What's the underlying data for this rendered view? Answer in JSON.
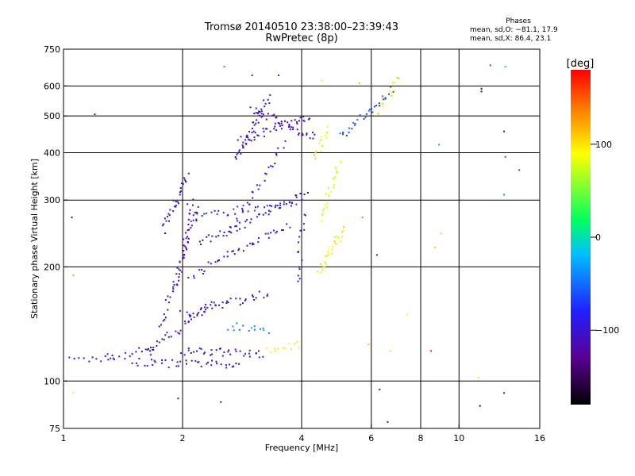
{
  "header": {
    "title": "Tromsø 20140510 23:38:00–23:39:43",
    "subtitle": "RwPretec (8p)",
    "phases": {
      "title": "Phases",
      "line_o": "mean, sd,O: −81.1, 17.9",
      "line_x": "mean, sd,X:  86.4, 23.1"
    }
  },
  "colorbar": {
    "unit": "[deg]",
    "ticks": [
      {
        "value": 100,
        "label": "100"
      },
      {
        "value": 0,
        "label": "0"
      },
      {
        "value": -100,
        "label": "−100"
      }
    ],
    "range": [
      -180,
      180
    ],
    "colors": [
      "#000000",
      "#5a0090",
      "#2020ff",
      "#00c0ff",
      "#00ff60",
      "#ffff00",
      "#ff8000",
      "#ff0000"
    ]
  },
  "chart_data": {
    "type": "scatter",
    "title": "Tromsø 20140510 23:38:00–23:39:43",
    "subtitle": "RwPretec (8p)",
    "xlabel": "Frequency [MHz]",
    "ylabel": "Stationary phase Virtual Height [km]",
    "x_scale": "log",
    "y_scale": "log",
    "xlim": [
      1,
      16
    ],
    "ylim": [
      75,
      750
    ],
    "x_ticks": [
      {
        "value": 1,
        "label": "1"
      },
      {
        "value": 2,
        "label": "2"
      },
      {
        "value": 4,
        "label": "4"
      },
      {
        "value": 6,
        "label": "6"
      },
      {
        "value": 8,
        "label": "8"
      },
      {
        "value": 10,
        "label": "10"
      },
      {
        "value": 16,
        "label": "16"
      }
    ],
    "y_ticks": [
      {
        "value": 75,
        "label": "75"
      },
      {
        "value": 100,
        "label": "100"
      },
      {
        "value": 200,
        "label": "200"
      },
      {
        "value": 300,
        "label": "300"
      },
      {
        "value": 400,
        "label": "400"
      },
      {
        "value": 500,
        "label": "500"
      },
      {
        "value": 600,
        "label": "600"
      },
      {
        "value": 750,
        "label": "750"
      }
    ],
    "x_gridlines": [
      2,
      4,
      6,
      8,
      10
    ],
    "y_gridlines": [
      100,
      200,
      300,
      400,
      500,
      600
    ],
    "grid": true,
    "color_scale": "phase [deg], -180 to 180",
    "traces": [
      {
        "x0": 1.05,
        "x1": 1.35,
        "h0": 113,
        "h1": 116,
        "n": 12,
        "phase": -100
      },
      {
        "x0": 1.3,
        "x1": 1.7,
        "h0": 115,
        "h1": 122,
        "n": 14,
        "phase": -105
      },
      {
        "x0": 1.5,
        "x1": 2.8,
        "h0": 112,
        "h1": 110,
        "n": 40,
        "phase": -100
      },
      {
        "x0": 1.6,
        "x1": 2.4,
        "h0": 118,
        "h1": 160,
        "n": 35,
        "phase": -105
      },
      {
        "x0": 1.75,
        "x1": 2.2,
        "h0": 140,
        "h1": 290,
        "n": 40,
        "phase": -110
      },
      {
        "x0": 1.8,
        "x1": 2.05,
        "h0": 250,
        "h1": 350,
        "n": 30,
        "phase": -100
      },
      {
        "x0": 1.95,
        "x1": 2.1,
        "h0": 180,
        "h1": 300,
        "n": 25,
        "phase": -115
      },
      {
        "x0": 2.0,
        "x1": 3.2,
        "h0": 120,
        "h1": 118,
        "n": 35,
        "phase": -95
      },
      {
        "x0": 2.0,
        "x1": 3.3,
        "h0": 150,
        "h1": 170,
        "n": 35,
        "phase": -100
      },
      {
        "x0": 2.1,
        "x1": 3.7,
        "h0": 190,
        "h1": 260,
        "n": 40,
        "phase": -95
      },
      {
        "x0": 2.2,
        "x1": 4.1,
        "h0": 230,
        "h1": 310,
        "n": 45,
        "phase": -100
      },
      {
        "x0": 2.1,
        "x1": 4.0,
        "h0": 270,
        "h1": 300,
        "n": 35,
        "phase": -80
      },
      {
        "x0": 2.6,
        "x1": 3.3,
        "h0": 140,
        "h1": 135,
        "n": 14,
        "phase": -40
      },
      {
        "x0": 2.7,
        "x1": 3.3,
        "h0": 380,
        "h1": 560,
        "n": 40,
        "phase": -100
      },
      {
        "x0": 2.8,
        "x1": 4.2,
        "h0": 430,
        "h1": 500,
        "n": 40,
        "phase": -105
      },
      {
        "x0": 3.0,
        "x1": 4.3,
        "h0": 520,
        "h1": 440,
        "n": 35,
        "phase": -110
      },
      {
        "x0": 2.6,
        "x1": 3.6,
        "h0": 240,
        "h1": 420,
        "n": 30,
        "phase": -90
      },
      {
        "x0": 3.3,
        "x1": 3.9,
        "h0": 120,
        "h1": 125,
        "n": 12,
        "phase": 85
      },
      {
        "x0": 3.9,
        "x1": 4.05,
        "h0": 180,
        "h1": 280,
        "n": 15,
        "phase": -110
      },
      {
        "x0": 4.4,
        "x1": 5.1,
        "h0": 195,
        "h1": 250,
        "n": 28,
        "phase": 95
      },
      {
        "x0": 4.5,
        "x1": 5.0,
        "h0": 270,
        "h1": 380,
        "n": 25,
        "phase": 80
      },
      {
        "x0": 4.3,
        "x1": 4.7,
        "h0": 390,
        "h1": 460,
        "n": 14,
        "phase": 100
      },
      {
        "x0": 5.0,
        "x1": 6.8,
        "h0": 440,
        "h1": 590,
        "n": 30,
        "phase": -60
      },
      {
        "x0": 6.2,
        "x1": 7.1,
        "h0": 510,
        "h1": 640,
        "n": 14,
        "phase": 100
      }
    ],
    "scatter": [
      {
        "x": 1.2,
        "h": 505,
        "phase": -120
      },
      {
        "x": 1.05,
        "h": 270,
        "phase": -110
      },
      {
        "x": 1.06,
        "h": 190,
        "phase": 120
      },
      {
        "x": 1.06,
        "h": 93,
        "phase": 100
      },
      {
        "x": 2.55,
        "h": 675,
        "phase": 150
      },
      {
        "x": 1.95,
        "h": 90,
        "phase": -110
      },
      {
        "x": 2.5,
        "h": 88,
        "phase": -100
      },
      {
        "x": 4.0,
        "h": 100,
        "phase": -110
      },
      {
        "x": 6.6,
        "h": 78,
        "phase": -120
      },
      {
        "x": 6.3,
        "h": 95,
        "phase": -110
      },
      {
        "x": 6.2,
        "h": 215,
        "phase": -110
      },
      {
        "x": 5.7,
        "h": 270,
        "phase": 140
      },
      {
        "x": 7.4,
        "h": 150,
        "phase": 90
      },
      {
        "x": 8.7,
        "h": 225,
        "phase": 110
      },
      {
        "x": 8.9,
        "h": 420,
        "phase": -30
      },
      {
        "x": 9.0,
        "h": 245,
        "phase": 110
      },
      {
        "x": 8.5,
        "h": 120,
        "phase": 170
      },
      {
        "x": 11.4,
        "h": 590,
        "phase": -140
      },
      {
        "x": 11.4,
        "h": 580,
        "phase": -140
      },
      {
        "x": 12.0,
        "h": 680,
        "phase": 170
      },
      {
        "x": 13.1,
        "h": 675,
        "phase": -20
      },
      {
        "x": 13.0,
        "h": 455,
        "phase": -120
      },
      {
        "x": 13.1,
        "h": 390,
        "phase": 170
      },
      {
        "x": 13.0,
        "h": 310,
        "phase": -40
      },
      {
        "x": 14.2,
        "h": 360,
        "phase": -60
      },
      {
        "x": 11.2,
        "h": 102,
        "phase": 100
      },
      {
        "x": 11.3,
        "h": 86,
        "phase": -150
      },
      {
        "x": 13.0,
        "h": 93,
        "phase": -130
      },
      {
        "x": 5.6,
        "h": 610,
        "phase": 120
      },
      {
        "x": 4.5,
        "h": 620,
        "phase": 95
      },
      {
        "x": 3.5,
        "h": 640,
        "phase": -110
      },
      {
        "x": 3.0,
        "h": 640,
        "phase": -90
      },
      {
        "x": 6.7,
        "h": 120,
        "phase": 100
      },
      {
        "x": 5.9,
        "h": 125,
        "phase": 110
      }
    ]
  }
}
